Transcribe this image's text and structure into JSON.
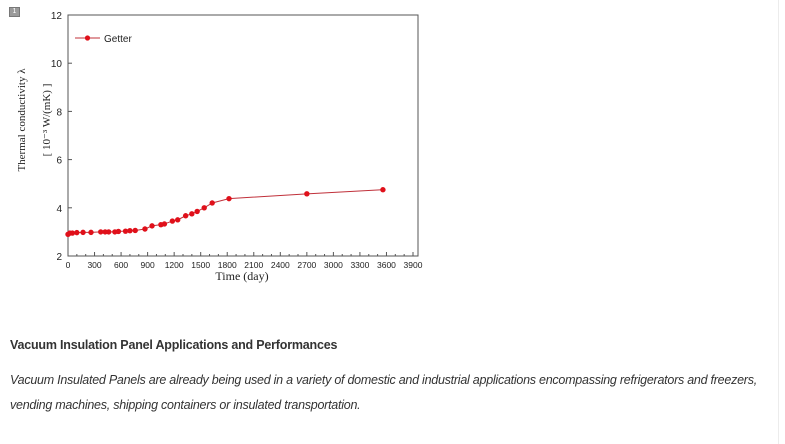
{
  "figure": {
    "badge": "1"
  },
  "chart_data": {
    "type": "line",
    "title": "",
    "xlabel": "Time (day)",
    "ylabel_line1": "Thermal conductivity λ",
    "ylabel_line2": "[ 10⁻³ W/(mK) ]",
    "xlim": [
      0,
      4000
    ],
    "ylim": [
      2,
      12
    ],
    "xticks": [
      "0",
      "300",
      "600",
      "900",
      "1200",
      "1500",
      "1800",
      "2100",
      "2400",
      "2700",
      "3000",
      "3300",
      "3600",
      "3900"
    ],
    "yticks": [
      "2",
      "4",
      "6",
      "8",
      "10",
      "12"
    ],
    "legend": {
      "position": "top-left",
      "entries": [
        "Getter"
      ]
    },
    "grid": false,
    "series": [
      {
        "name": "Getter",
        "color": "#e0101a",
        "x": [
          0,
          20,
          50,
          100,
          170,
          260,
          370,
          420,
          460,
          530,
          570,
          650,
          700,
          760,
          870,
          950,
          1050,
          1090,
          1180,
          1240,
          1330,
          1400,
          1460,
          1540,
          1630,
          1820,
          2700,
          3560
        ],
        "y": [
          2.9,
          2.95,
          2.95,
          2.97,
          2.98,
          2.98,
          3.0,
          3.0,
          3.0,
          3.0,
          3.02,
          3.03,
          3.05,
          3.06,
          3.12,
          3.25,
          3.3,
          3.33,
          3.45,
          3.5,
          3.67,
          3.75,
          3.85,
          4.0,
          4.2,
          4.38,
          4.58,
          4.75
        ]
      }
    ]
  },
  "article": {
    "heading": "Vacuum Insulation Panel Applications and Performances",
    "paragraph": "Vacuum Insulated Panels are already being used in a variety of domestic and industrial applications encompassing refrigerators and freezers, vending machines, shipping containers or insulated transportation."
  }
}
